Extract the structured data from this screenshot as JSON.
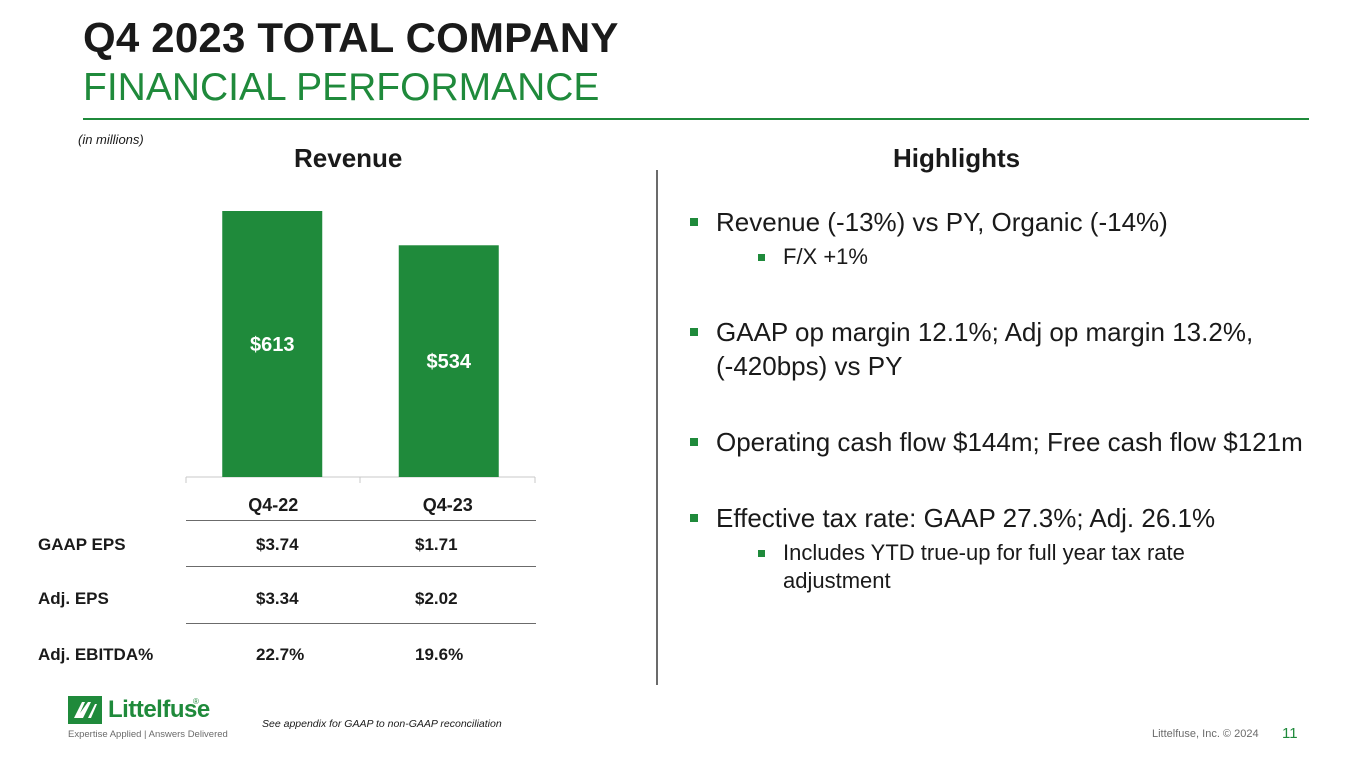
{
  "header": {
    "title": "Q4 2023 TOTAL COMPANY",
    "subtitle": "FINANCIAL PERFORMANCE",
    "units_note": "(in millions)"
  },
  "sections": {
    "revenue_heading": "Revenue",
    "highlights_heading": "Highlights"
  },
  "chart_data": {
    "type": "bar",
    "title": "Revenue",
    "categories": [
      "Q4-22",
      "Q4-23"
    ],
    "values": [
      613,
      534
    ],
    "value_labels": [
      "$613",
      "$534"
    ],
    "ylim": [
      0,
      613
    ],
    "color": "#1f8a3b",
    "xlabel": "",
    "ylabel": ""
  },
  "table": {
    "rows": [
      {
        "label": "GAAP EPS",
        "q4_22": "$3.74",
        "q4_23": "$1.71"
      },
      {
        "label": "Adj. EPS",
        "q4_22": "$3.34",
        "q4_23": "$2.02"
      },
      {
        "label": "Adj. EBITDA%",
        "q4_22": "22.7%",
        "q4_23": "19.6%"
      }
    ]
  },
  "highlights": [
    {
      "text": "Revenue (-13%) vs PY, Organic (-14%)",
      "sub": [
        "F/X +1%"
      ]
    },
    {
      "text": "GAAP op margin 12.1%; Adj op margin 13.2%, (-420bps) vs PY",
      "sub": []
    },
    {
      "text": "Operating cash flow $144m; Free cash flow $121m",
      "sub": []
    },
    {
      "text": "Effective tax rate: GAAP 27.3%; Adj. 26.1%",
      "sub": [
        "Includes YTD true-up for full year tax rate adjustment"
      ]
    }
  ],
  "footer": {
    "logo_name": "Littelfuse",
    "logo_reg": "®",
    "logo_tagline": "Expertise Applied | Answers Delivered",
    "footnote": "See appendix for GAAP to non-GAAP reconciliation",
    "copyright": "Littelfuse, Inc. © 2024",
    "page_number": "11"
  },
  "colors": {
    "brand_green": "#1f8a3b",
    "text": "#1a1a1a",
    "rule_gray": "#6b6b6b"
  }
}
